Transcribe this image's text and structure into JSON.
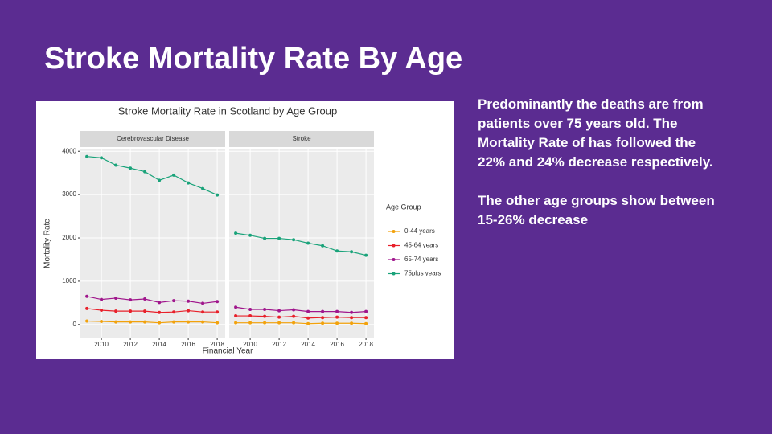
{
  "slide_title": "Stroke Mortality Rate By Age",
  "notes": [
    [
      "Predominantly the deaths are from",
      "patients over 75 years old. The",
      "Mortality Rate of has followed the",
      "22% and 24% decrease respectively."
    ],
    [
      "The other age groups show between",
      "15-26% decrease"
    ]
  ],
  "chart_data": [
    {
      "type": "line",
      "title": "Stroke Mortality Rate in Scotland by Age Group",
      "facet": "Cerebrovascular Disease",
      "xlabel": "Financial Year",
      "ylabel": "Mortality Rate",
      "legend_title": "Age Group",
      "grid": true,
      "x": [
        2009,
        2010,
        2011,
        2012,
        2013,
        2014,
        2015,
        2016,
        2017,
        2018
      ],
      "xlim": [
        2008.55,
        2018.55
      ],
      "xticks": [
        2010,
        2012,
        2014,
        2016,
        2018
      ],
      "ylim": [
        -300,
        4060
      ],
      "yticks": [
        0,
        1000,
        2000,
        3000,
        4000
      ],
      "series": [
        {
          "name": "0-44 years",
          "color": "#f2a20c",
          "values": [
            80,
            70,
            60,
            60,
            60,
            40,
            60,
            60,
            60,
            40
          ]
        },
        {
          "name": "45-64 years",
          "color": "#e8202a",
          "values": [
            370,
            330,
            310,
            310,
            310,
            280,
            290,
            320,
            290,
            290
          ]
        },
        {
          "name": "65-74 years",
          "color": "#a0168c",
          "values": [
            650,
            580,
            610,
            570,
            590,
            510,
            550,
            540,
            490,
            530
          ]
        },
        {
          "name": "75plus years",
          "color": "#1aa37a",
          "values": [
            3880,
            3850,
            3680,
            3610,
            3530,
            3330,
            3450,
            3270,
            3140,
            2990
          ]
        }
      ]
    },
    {
      "type": "line",
      "facet": "Stroke",
      "grid": true,
      "x": [
        2009,
        2010,
        2011,
        2012,
        2013,
        2014,
        2015,
        2016,
        2017,
        2018
      ],
      "xlim": [
        2008.55,
        2018.55
      ],
      "xticks": [
        2010,
        2012,
        2014,
        2016,
        2018
      ],
      "ylim": [
        -300,
        4060
      ],
      "yticks": [
        0,
        1000,
        2000,
        3000,
        4000
      ],
      "series": [
        {
          "color": "#f2a20c",
          "values": [
            40,
            40,
            40,
            40,
            40,
            20,
            30,
            30,
            30,
            20
          ]
        },
        {
          "color": "#e8202a",
          "values": [
            200,
            200,
            190,
            170,
            190,
            150,
            160,
            170,
            160,
            160
          ]
        },
        {
          "color": "#a0168c",
          "values": [
            400,
            350,
            350,
            320,
            340,
            300,
            300,
            300,
            280,
            300
          ]
        },
        {
          "color": "#1aa37a",
          "values": [
            2110,
            2060,
            1990,
            1990,
            1960,
            1880,
            1820,
            1700,
            1680,
            1600
          ]
        }
      ]
    }
  ]
}
